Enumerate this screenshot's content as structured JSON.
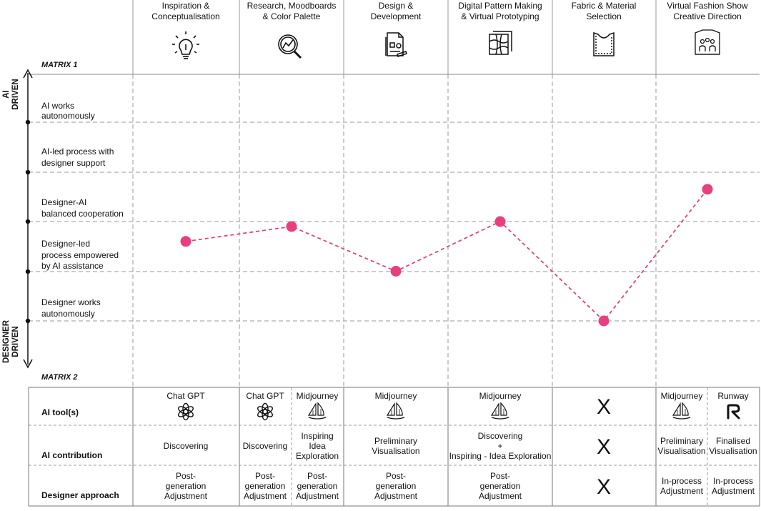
{
  "matrix1_label": "MATRIX 1",
  "matrix2_label": "MATRIX 2",
  "axis": {
    "top": [
      "AI",
      "DRIVEN"
    ],
    "bottom": [
      "DESIGNER",
      "DRIVEN"
    ]
  },
  "stages": [
    {
      "title": [
        "Inspiration &",
        "Conceptualisation"
      ],
      "icon": "lightbulb-icon"
    },
    {
      "title": [
        "Research, Moodboards",
        "& Color Palette"
      ],
      "icon": "magnifier-chart-icon"
    },
    {
      "title": [
        "Design &",
        "Development"
      ],
      "icon": "design-document-icon"
    },
    {
      "title": [
        "Digital Pattern Making",
        "& Virtual Prototyping"
      ],
      "icon": "pattern-pieces-icon"
    },
    {
      "title": [
        "Fabric & Material",
        "Selection"
      ],
      "icon": "fabric-garment-icon"
    },
    {
      "title": [
        "Virtual Fashion Show",
        "Creative Direction"
      ],
      "icon": "runway-show-icon"
    }
  ],
  "levels": [
    {
      "label": [
        "AI works",
        "autonomously"
      ]
    },
    {
      "label": [
        "AI-led process with",
        "designer support"
      ]
    },
    {
      "label": [
        "Designer-AI",
        "balanced cooperation"
      ]
    },
    {
      "label": [
        "Designer-led",
        "process empowered",
        "by AI assistance"
      ]
    },
    {
      "label": [
        "Designer works",
        "autonomously"
      ]
    }
  ],
  "chart_data": {
    "type": "line",
    "categories": [
      "Inspiration & Conceptualisation",
      "Research, Moodboards & Color Palette",
      "Design & Development",
      "Digital Pattern Making & Virtual Prototyping",
      "Fabric & Material Selection",
      "Virtual Fashion Show Creative Direction"
    ],
    "y_levels": [
      "Designer works autonomously",
      "Designer-led process empowered by AI assistance",
      "Designer-AI balanced cooperation",
      "AI-led process with designer support",
      "AI works autonomously"
    ],
    "series": [
      {
        "values": [
          1.6,
          1.9,
          1.0,
          2.0,
          0.0,
          2.65
        ],
        "color": "#e8407f",
        "style": "dashed"
      }
    ]
  },
  "matrix2": {
    "row_labels": [
      "AI tool(s)",
      "AI contribution",
      "Designer approach"
    ],
    "columns": [
      {
        "tool": "Chat GPT",
        "tool_icon": "chatgpt-icon",
        "contribution": [
          "Discovering"
        ],
        "approach": [
          "Post-",
          "generation",
          "Adjustment"
        ]
      },
      {
        "tool": "Chat GPT",
        "tool_icon": "chatgpt-icon",
        "contribution": [
          "Discovering"
        ],
        "approach": [
          "Post-",
          "generation",
          "Adjustment"
        ]
      },
      {
        "tool": "Midjourney",
        "tool_icon": "midjourney-sailboat-icon",
        "contribution": [
          "Inspiring",
          "Idea",
          "Exploration"
        ],
        "approach": [
          "Post-",
          "generation",
          "Adjustment"
        ]
      },
      {
        "tool": "Midjourney",
        "tool_icon": "midjourney-sailboat-icon",
        "contribution": [
          "Preliminary",
          "Visualisation"
        ],
        "approach": [
          "Post-",
          "generation",
          "Adjustment"
        ]
      },
      {
        "tool": "Midjourney",
        "tool_icon": "midjourney-sailboat-icon",
        "contribution": [
          "Discovering",
          "+",
          "Inspiring - Idea Exploration"
        ],
        "approach": [
          "Post-",
          "generation",
          "Adjustment"
        ]
      },
      {
        "tool": "",
        "tool_icon": "",
        "contribution": [],
        "approach": [],
        "none_mark": "X"
      },
      {
        "tool": "Midjourney",
        "tool_icon": "midjourney-sailboat-icon",
        "contribution": [
          "Preliminary",
          "Visualisation"
        ],
        "approach": [
          "In-process",
          "Adjustment"
        ]
      },
      {
        "tool": "Runway",
        "tool_icon": "runway-icon",
        "contribution": [
          "Finalised",
          "Visualisation"
        ],
        "approach": [
          "In-process",
          "Adjustment"
        ]
      }
    ]
  },
  "colors": {
    "line": "#e8407f",
    "point": "#e8407f",
    "grid": "#9a9a9a"
  }
}
